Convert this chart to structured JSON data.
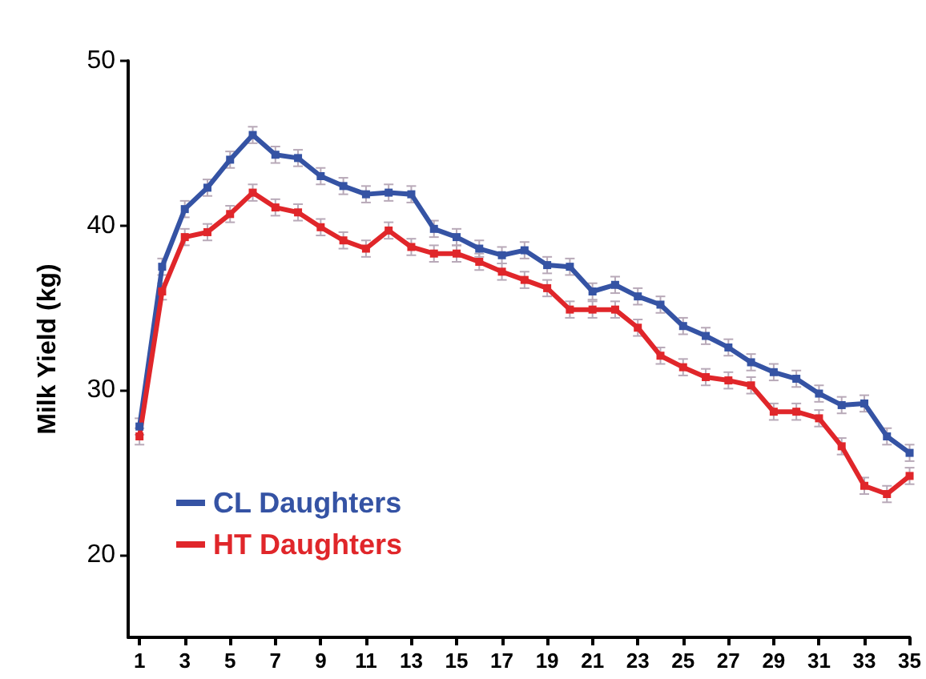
{
  "chart_data": {
    "type": "line",
    "ylabel": "Milk Yield (kg)",
    "x": [
      1,
      2,
      3,
      4,
      5,
      6,
      7,
      8,
      9,
      10,
      11,
      12,
      13,
      14,
      15,
      16,
      17,
      18,
      19,
      20,
      21,
      22,
      23,
      24,
      25,
      26,
      27,
      28,
      29,
      30,
      31,
      32,
      33,
      34,
      35
    ],
    "xlim": [
      0.5,
      35
    ],
    "xticks": [
      1,
      3,
      5,
      7,
      9,
      11,
      13,
      15,
      17,
      19,
      21,
      23,
      25,
      27,
      29,
      31,
      33,
      35
    ],
    "ylim": [
      15,
      50
    ],
    "yticks": [
      20,
      30,
      40,
      50
    ],
    "grid": false,
    "legend": "bottom left",
    "marker": "square",
    "line_style": "solid",
    "series": [
      {
        "name": "CL Daughters",
        "color": "#3553a4",
        "values": [
          27.8,
          37.5,
          41,
          42.3,
          44,
          45.5,
          44.3,
          44.1,
          43,
          42.4,
          41.9,
          42,
          41.9,
          39.8,
          39.3,
          38.6,
          38.2,
          38.5,
          37.6,
          37.5,
          36,
          36.4,
          35.7,
          35.2,
          33.9,
          33.3,
          32.6,
          31.7,
          31.1,
          30.7,
          29.8,
          29.1,
          29.2,
          27.2,
          26.2
        ],
        "errors": [
          0.5,
          0.5,
          0.5,
          0.5,
          0.5,
          0.5,
          0.5,
          0.5,
          0.5,
          0.5,
          0.5,
          0.5,
          0.5,
          0.5,
          0.5,
          0.5,
          0.5,
          0.5,
          0.5,
          0.5,
          0.5,
          0.5,
          0.5,
          0.5,
          0.5,
          0.5,
          0.5,
          0.5,
          0.5,
          0.5,
          0.5,
          0.5,
          0.5,
          0.5,
          0.5
        ]
      },
      {
        "name": "HT Daughters",
        "color": "#e0262a",
        "values": [
          27.2,
          36,
          39.3,
          39.6,
          40.7,
          42,
          41.1,
          40.8,
          39.9,
          39.1,
          38.6,
          39.7,
          38.7,
          38.3,
          38.3,
          37.8,
          37.2,
          36.7,
          36.2,
          34.9,
          34.9,
          34.9,
          33.8,
          32.1,
          31.4,
          30.8,
          30.6,
          30.3,
          28.7,
          28.7,
          28.3,
          26.6,
          24.2,
          23.7,
          24.8
        ],
        "errors": [
          0.5,
          0.5,
          0.5,
          0.5,
          0.5,
          0.5,
          0.5,
          0.5,
          0.5,
          0.5,
          0.5,
          0.5,
          0.5,
          0.5,
          0.5,
          0.5,
          0.5,
          0.5,
          0.5,
          0.5,
          0.5,
          0.5,
          0.5,
          0.5,
          0.5,
          0.5,
          0.5,
          0.5,
          0.5,
          0.5,
          0.5,
          0.5,
          0.5,
          0.5,
          0.5
        ]
      }
    ]
  }
}
